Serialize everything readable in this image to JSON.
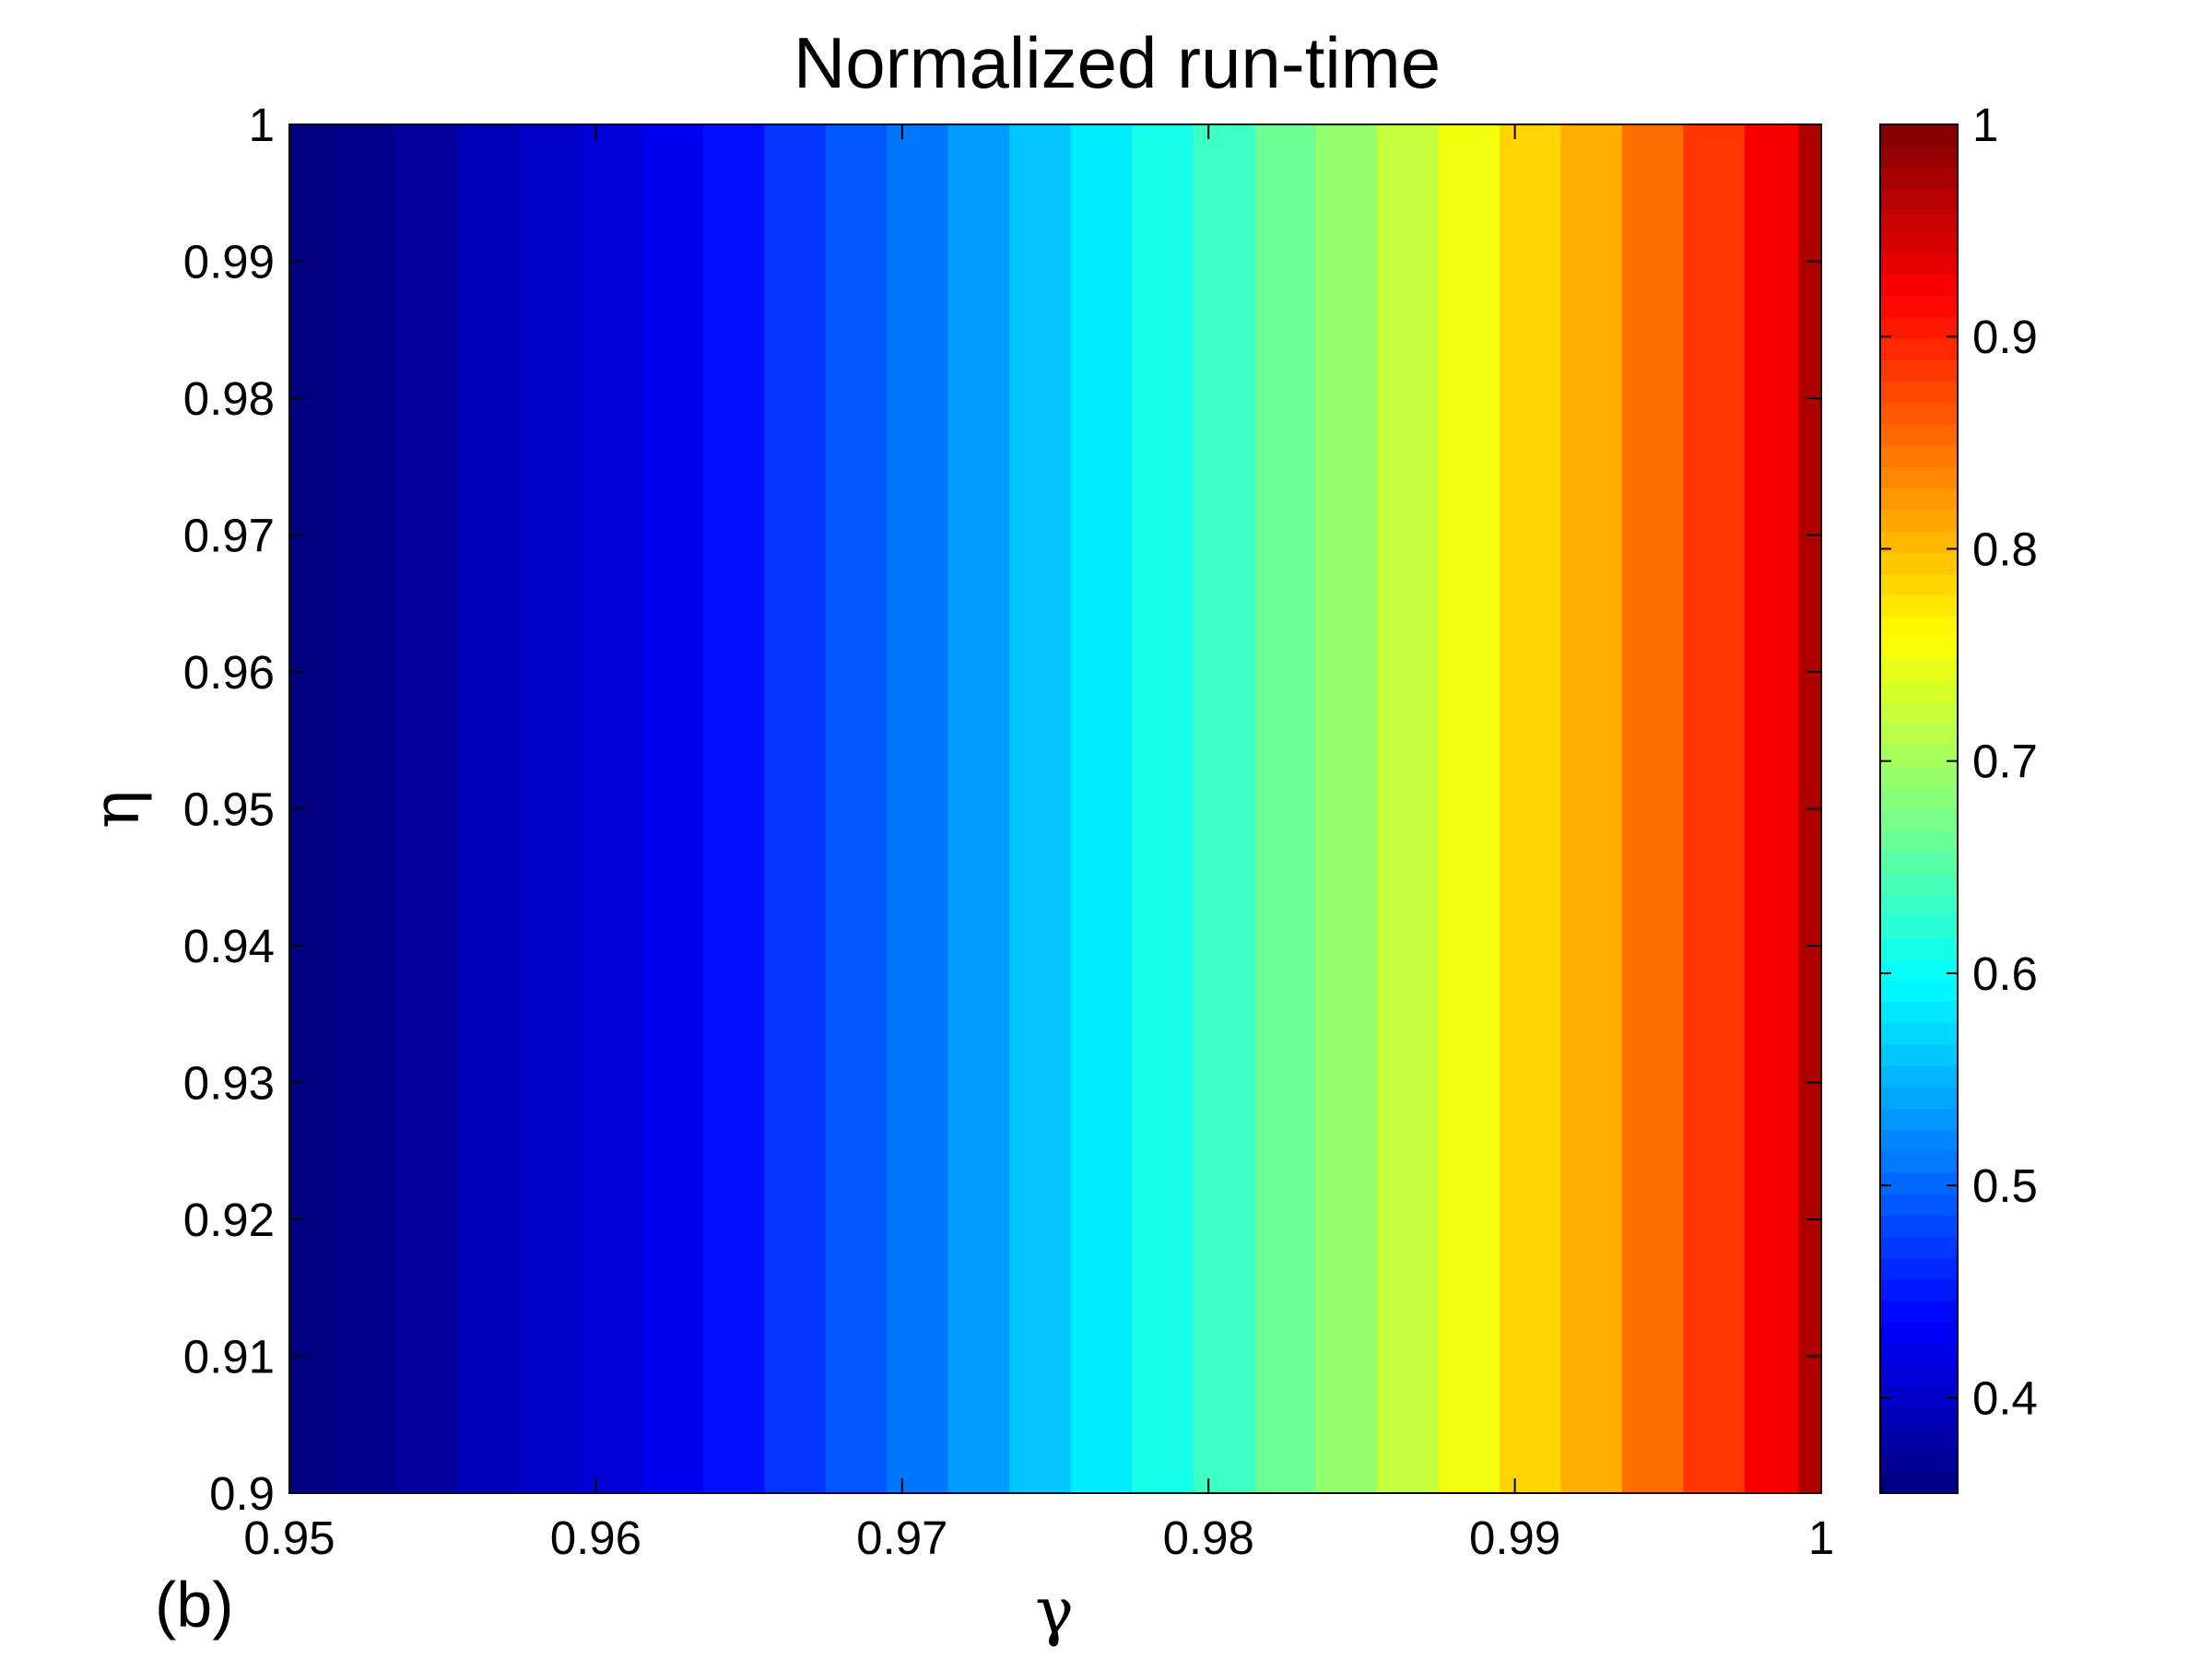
{
  "chart_data": {
    "type": "heatmap",
    "title": "Normalized run-time",
    "xlabel": "γ",
    "ylabel": "η",
    "panel_label": "(b)",
    "xlim": [
      0.95,
      1.0
    ],
    "ylim": [
      0.9,
      1.0
    ],
    "xticks": [
      0.95,
      0.96,
      0.97,
      0.98,
      0.99,
      1.0
    ],
    "xtick_labels": [
      "0.95",
      "0.96",
      "0.97",
      "0.98",
      "0.99",
      "1"
    ],
    "yticks": [
      0.9,
      0.91,
      0.92,
      0.93,
      0.94,
      0.95,
      0.96,
      0.97,
      0.98,
      0.99,
      1.0
    ],
    "ytick_labels": [
      "0.9",
      "0.91",
      "0.92",
      "0.93",
      "0.94",
      "0.95",
      "0.96",
      "0.97",
      "0.98",
      "0.99",
      "1"
    ],
    "colorbar": {
      "colormap": "jet",
      "clim": [
        0.355,
        1.0
      ],
      "ticks": [
        0.4,
        0.5,
        0.6,
        0.7,
        0.8,
        0.9,
        1.0
      ],
      "tick_labels": [
        "0.4",
        "0.5",
        "0.6",
        "0.7",
        "0.8",
        "0.9",
        "1"
      ]
    },
    "gamma_columns": [
      0.9505,
      0.9525,
      0.9545,
      0.9565,
      0.9585,
      0.9605,
      0.9625,
      0.9645,
      0.9665,
      0.9685,
      0.9705,
      0.9725,
      0.9745,
      0.9765,
      0.9785,
      0.9805,
      0.9825,
      0.9845,
      0.9865,
      0.9885,
      0.9905,
      0.9925,
      0.9945,
      0.9965,
      0.9985,
      1.0
    ],
    "values_by_gamma": [
      0.355,
      0.365,
      0.375,
      0.39,
      0.4,
      0.41,
      0.425,
      0.445,
      0.47,
      0.49,
      0.51,
      0.535,
      0.56,
      0.585,
      0.61,
      0.635,
      0.665,
      0.69,
      0.72,
      0.75,
      0.785,
      0.81,
      0.85,
      0.885,
      0.925,
      0.97
    ],
    "grid": false
  }
}
